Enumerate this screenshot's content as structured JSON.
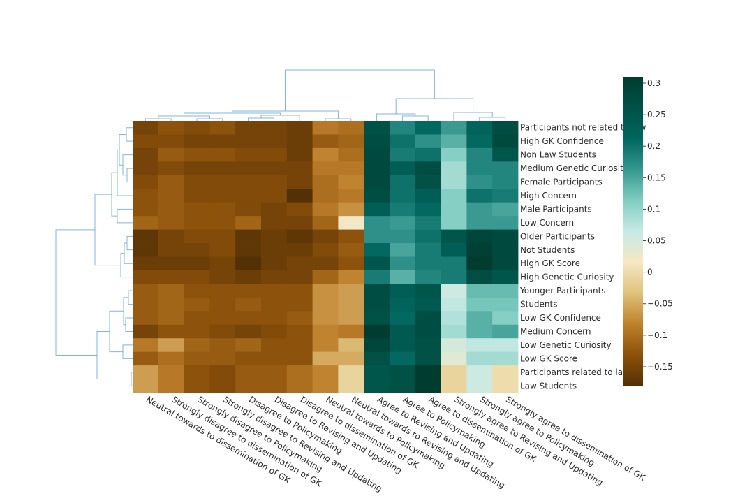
{
  "chart_data": {
    "type": "heatmap",
    "title": "",
    "rows": [
      "Participants not related to law",
      "High GK Confidence",
      "Non Law Students",
      "Medium Genetic Curiosity",
      "Female Participants",
      "High Concern",
      "Male Participants",
      "Low Concern",
      "Older Participants",
      "Not Students",
      "High GK Score",
      "High Genetic Curiosity",
      "Younger Participants",
      "Students",
      "Low GK Confidence",
      "Medium Concern",
      "Low Genetic Curiosity",
      "Low GK Score",
      "Participants related to law",
      "Law Students"
    ],
    "columns": [
      "Neutral towards to dissemination of GK",
      "Strongly disagree to dissemination of GK",
      "Strongly disagree to Policymaking",
      "Strongly disagree to Revising and Updating",
      "Disagree to Policymaking",
      "Disagree to Revising and Updating",
      "Disagree to dissemination of GK",
      "Neutral towards to Policymaking",
      "Neutral towards to Revising and Updating",
      "Agree to Revising and Updating",
      "Agree to Policymaking",
      "Agree to dissemination of GK",
      "Strongly agree to Revising and Updating",
      "Strongly agree to Policymaking",
      "Strongly agree to dissemination of GK"
    ],
    "values": [
      [
        -0.15,
        -0.13,
        -0.14,
        -0.13,
        -0.15,
        -0.15,
        -0.16,
        -0.09,
        -0.1,
        0.26,
        0.18,
        0.21,
        0.16,
        0.22,
        0.27
      ],
      [
        -0.14,
        -0.14,
        -0.15,
        -0.15,
        -0.15,
        -0.15,
        -0.16,
        -0.12,
        -0.11,
        0.27,
        0.2,
        0.17,
        0.14,
        0.21,
        0.28
      ],
      [
        -0.15,
        -0.12,
        -0.13,
        -0.13,
        -0.14,
        -0.14,
        -0.16,
        -0.08,
        -0.1,
        0.28,
        0.19,
        0.2,
        0.11,
        0.18,
        0.25
      ],
      [
        -0.15,
        -0.14,
        -0.15,
        -0.15,
        -0.15,
        -0.15,
        -0.15,
        -0.09,
        -0.09,
        0.28,
        0.23,
        0.27,
        0.09,
        0.18,
        0.18
      ],
      [
        -0.14,
        -0.12,
        -0.14,
        -0.14,
        -0.14,
        -0.14,
        -0.15,
        -0.1,
        -0.08,
        0.28,
        0.2,
        0.26,
        0.09,
        0.17,
        0.18
      ],
      [
        -0.13,
        -0.12,
        -0.14,
        -0.14,
        -0.14,
        -0.14,
        -0.18,
        -0.1,
        -0.09,
        0.27,
        0.2,
        0.23,
        0.11,
        0.2,
        0.19
      ],
      [
        -0.13,
        -0.12,
        -0.13,
        -0.13,
        -0.14,
        -0.15,
        -0.14,
        -0.09,
        -0.07,
        0.23,
        0.19,
        0.21,
        0.11,
        0.16,
        0.15
      ],
      [
        -0.11,
        -0.12,
        -0.13,
        -0.13,
        -0.11,
        -0.15,
        -0.15,
        -0.11,
        0.02,
        0.17,
        0.16,
        0.19,
        0.11,
        0.16,
        0.16
      ],
      [
        -0.17,
        -0.15,
        -0.14,
        -0.14,
        -0.17,
        -0.16,
        -0.17,
        -0.15,
        -0.13,
        0.17,
        0.17,
        0.2,
        0.25,
        0.29,
        0.28
      ],
      [
        -0.17,
        -0.15,
        -0.15,
        -0.14,
        -0.17,
        -0.16,
        -0.16,
        -0.14,
        -0.12,
        0.21,
        0.15,
        0.19,
        0.23,
        0.3,
        0.28
      ],
      [
        -0.16,
        -0.16,
        -0.16,
        -0.15,
        -0.18,
        -0.16,
        -0.15,
        -0.15,
        -0.13,
        0.25,
        0.17,
        0.19,
        0.19,
        0.31,
        0.28
      ],
      [
        -0.14,
        -0.14,
        -0.14,
        -0.15,
        -0.16,
        -0.15,
        -0.15,
        -0.11,
        -0.08,
        0.19,
        0.14,
        0.18,
        0.19,
        0.27,
        0.25
      ],
      [
        -0.12,
        -0.11,
        -0.13,
        -0.13,
        -0.13,
        -0.13,
        -0.13,
        -0.07,
        -0.06,
        0.27,
        0.23,
        0.25,
        0.06,
        0.13,
        0.13
      ],
      [
        -0.12,
        -0.11,
        -0.12,
        -0.13,
        -0.12,
        -0.13,
        -0.13,
        -0.07,
        -0.06,
        0.27,
        0.22,
        0.24,
        0.07,
        0.12,
        0.12
      ],
      [
        -0.12,
        -0.11,
        -0.13,
        -0.13,
        -0.13,
        -0.13,
        -0.12,
        -0.07,
        -0.06,
        0.26,
        0.21,
        0.27,
        0.08,
        0.14,
        0.11
      ],
      [
        -0.15,
        -0.13,
        -0.13,
        -0.14,
        -0.15,
        -0.14,
        -0.13,
        -0.08,
        -0.09,
        0.31,
        0.24,
        0.27,
        0.09,
        0.14,
        0.15
      ],
      [
        -0.09,
        -0.06,
        -0.11,
        -0.12,
        -0.11,
        -0.13,
        -0.13,
        -0.08,
        -0.04,
        0.29,
        0.24,
        0.26,
        0.05,
        0.07,
        0.07
      ],
      [
        -0.12,
        -0.1,
        -0.12,
        -0.12,
        -0.13,
        -0.13,
        -0.13,
        -0.05,
        -0.05,
        0.26,
        0.21,
        0.26,
        0.04,
        0.09,
        0.09
      ],
      [
        -0.06,
        -0.09,
        -0.13,
        -0.14,
        -0.12,
        -0.12,
        -0.1,
        -0.08,
        -0.01,
        0.25,
        0.26,
        0.31,
        -0.01,
        0.06,
        0.0
      ],
      [
        -0.06,
        -0.09,
        -0.13,
        -0.14,
        -0.12,
        -0.12,
        -0.1,
        -0.08,
        -0.01,
        0.25,
        0.26,
        0.31,
        -0.01,
        0.06,
        0.0
      ]
    ],
    "colorbar": {
      "min": -0.18,
      "max": 0.31,
      "ticks": [
        {
          "value": 0.3,
          "label": "0.3"
        },
        {
          "value": 0.25,
          "label": "0.25"
        },
        {
          "value": 0.2,
          "label": "0.2"
        },
        {
          "value": 0.15,
          "label": "0.15"
        },
        {
          "value": 0.1,
          "label": "0.1"
        },
        {
          "value": 0.05,
          "label": "0.05"
        },
        {
          "value": 0,
          "label": "0"
        },
        {
          "value": -0.05,
          "label": "−0.05"
        },
        {
          "value": -0.1,
          "label": "−0.1"
        },
        {
          "value": -0.15,
          "label": "−0.15"
        }
      ],
      "colorscale": [
        [
          0.0,
          "#543005"
        ],
        [
          0.1,
          "#8c510a"
        ],
        [
          0.2,
          "#bf812d"
        ],
        [
          0.3,
          "#dfc27d"
        ],
        [
          0.4,
          "#f6e8c3"
        ],
        [
          0.5,
          "#c7eae5"
        ],
        [
          0.6,
          "#80cdc1"
        ],
        [
          0.7,
          "#35978f"
        ],
        [
          0.8,
          "#01665e"
        ],
        [
          1.0,
          "#003c30"
        ]
      ]
    },
    "dendrogram_color": "#5b9bd5",
    "row_dendrogram_present": true,
    "column_dendrogram_present": true
  }
}
